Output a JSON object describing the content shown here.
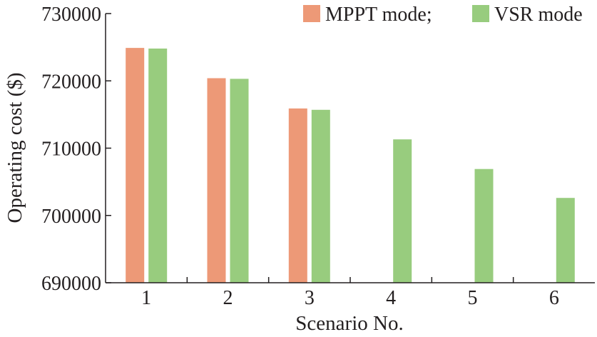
{
  "chart_data": {
    "type": "bar",
    "title": "",
    "xlabel": "Scenario No.",
    "ylabel": "Operating cost ($)",
    "categories": [
      "1",
      "2",
      "3",
      "4",
      "5",
      "6"
    ],
    "ylim": [
      690000,
      730000
    ],
    "yticks": [
      "690000",
      "700000",
      "710000",
      "720000",
      "730000"
    ],
    "grid": false,
    "legend_position": "top-right",
    "series": [
      {
        "name": "MPPT mode;",
        "color": "#ed9977",
        "values": [
          724900,
          720400,
          715900,
          null,
          null,
          null
        ]
      },
      {
        "name": "VSR mode",
        "color": "#98cc7e",
        "values": [
          724800,
          720300,
          715700,
          711300,
          706900,
          702600
        ]
      }
    ]
  }
}
